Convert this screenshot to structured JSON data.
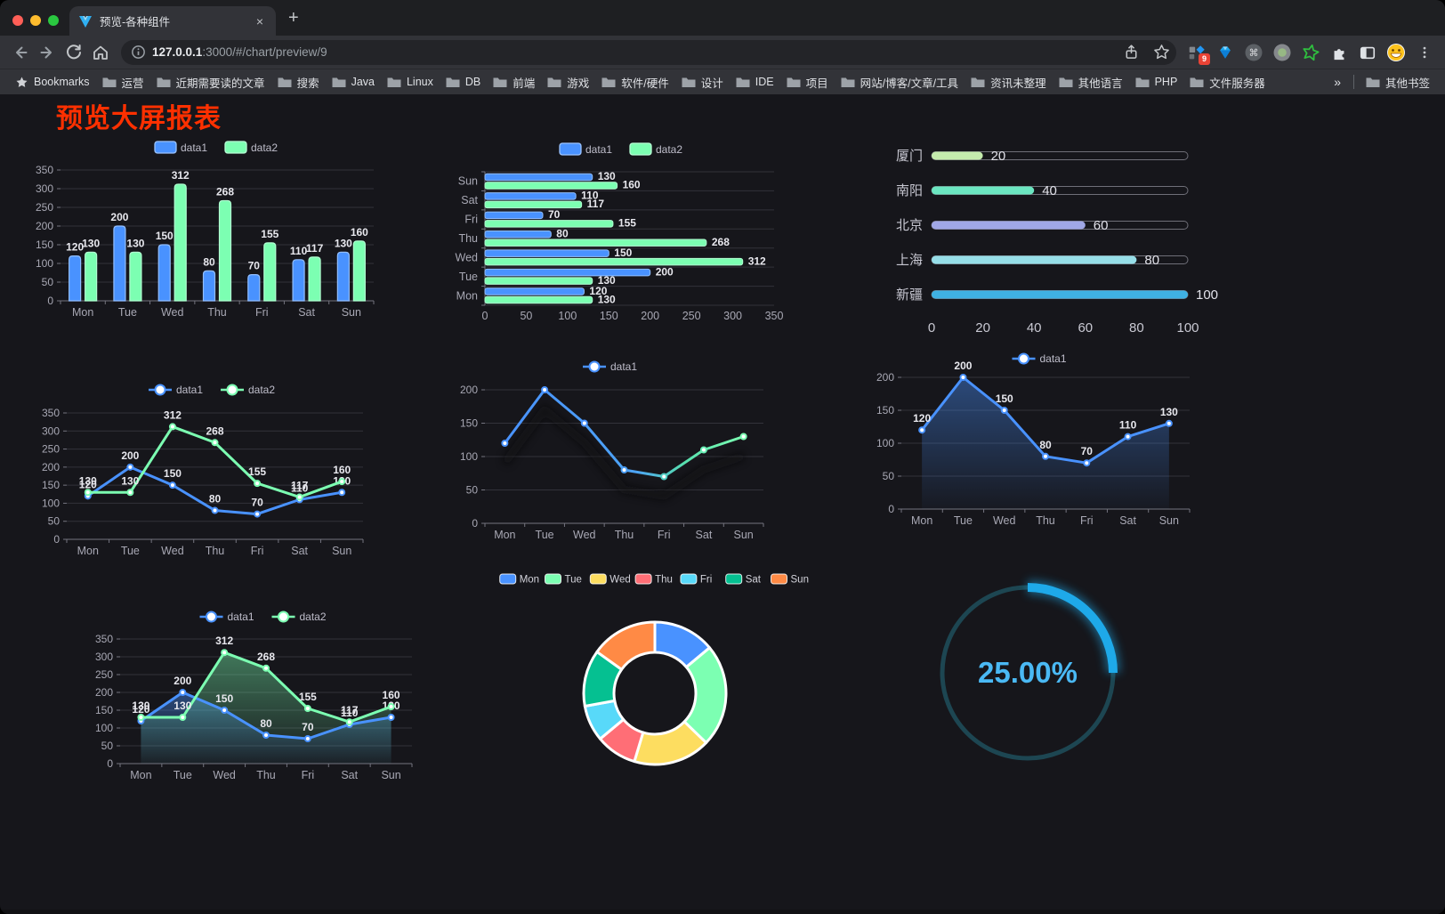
{
  "browser": {
    "tab": {
      "title": "预览-各种组件",
      "close_glyph": "×",
      "new_tab_glyph": "+"
    },
    "urlbar": {
      "host": "127.0.0.1",
      "rest": ":3000/#/chart/preview/9"
    },
    "extensions": {
      "badge": "9"
    },
    "bookmarks": {
      "label": "Bookmarks",
      "folders": [
        "运营",
        "近期需要读的文章",
        "搜索",
        "Java",
        "Linux",
        "DB",
        "前端",
        "游戏",
        "软件/硬件",
        "设计",
        "IDE",
        "项目",
        "网站/博客/文章/工具",
        "资讯未整理",
        "其他语言",
        "PHP",
        "文件服务器"
      ],
      "overflow": "»",
      "other_label": "其他书签"
    }
  },
  "page": {
    "title": "预览大屏报表"
  },
  "chart_data": [
    {
      "type": "bar",
      "categories": [
        "Mon",
        "Tue",
        "Wed",
        "Thu",
        "Fri",
        "Sat",
        "Sun"
      ],
      "series": [
        {
          "name": "data1",
          "color": "#4992ff",
          "values": [
            120,
            200,
            150,
            80,
            70,
            110,
            130
          ]
        },
        {
          "name": "data2",
          "color": "#7cffb2",
          "values": [
            130,
            130,
            312,
            268,
            155,
            117,
            160
          ]
        }
      ],
      "ylim": [
        0,
        350
      ],
      "ystep": 50,
      "legend_position": "top",
      "grid": true
    },
    {
      "type": "bar-horizontal",
      "categories": [
        "Mon",
        "Tue",
        "Wed",
        "Thu",
        "Fri",
        "Sat",
        "Sun"
      ],
      "display_order_top_to_bottom": [
        "Sun",
        "Sat",
        "Fri",
        "Thu",
        "Wed",
        "Tue",
        "Mon"
      ],
      "series": [
        {
          "name": "data1",
          "color": "#4992ff",
          "values": [
            120,
            200,
            150,
            80,
            70,
            110,
            130
          ]
        },
        {
          "name": "data2",
          "color": "#7cffb2",
          "values": [
            130,
            130,
            312,
            268,
            155,
            117,
            160
          ]
        }
      ],
      "xlim": [
        0,
        350
      ],
      "xstep": 50,
      "legend_position": "top"
    },
    {
      "type": "progress",
      "items": [
        {
          "label": "厦门",
          "value": 20,
          "color": "#c4ebad"
        },
        {
          "label": "南阳",
          "value": 40,
          "color": "#6be6c1"
        },
        {
          "label": "北京",
          "value": 60,
          "color": "#a0a7e6"
        },
        {
          "label": "上海",
          "value": 80,
          "color": "#96dee8"
        },
        {
          "label": "新疆",
          "value": 100,
          "color": "#3fb1e3"
        }
      ],
      "xlim": [
        0,
        100
      ],
      "xticks": [
        0,
        20,
        40,
        60,
        80,
        100
      ]
    },
    {
      "type": "line",
      "categories": [
        "Mon",
        "Tue",
        "Wed",
        "Thu",
        "Fri",
        "Sat",
        "Sun"
      ],
      "series": [
        {
          "name": "data1",
          "color": "#4992ff",
          "values": [
            120,
            200,
            150,
            80,
            70,
            110,
            130
          ]
        },
        {
          "name": "data2",
          "color": "#7cffb2",
          "values": [
            130,
            130,
            312,
            268,
            155,
            117,
            160
          ]
        }
      ],
      "ylim": [
        0,
        350
      ],
      "ystep": 50,
      "point_labels": true
    },
    {
      "type": "line-gradient",
      "categories": [
        "Mon",
        "Tue",
        "Wed",
        "Thu",
        "Fri",
        "Sat",
        "Sun"
      ],
      "series": [
        {
          "name": "data1",
          "gradient": [
            "#4992ff",
            "#7cffb2"
          ],
          "values": [
            120,
            200,
            150,
            80,
            70,
            110,
            130
          ]
        }
      ],
      "ylim": [
        0,
        200
      ],
      "ystep": 50,
      "shadow": true
    },
    {
      "type": "area",
      "categories": [
        "Mon",
        "Tue",
        "Wed",
        "Thu",
        "Fri",
        "Sat",
        "Sun"
      ],
      "series": [
        {
          "name": "data1",
          "color": "#4992ff",
          "values": [
            120,
            200,
            150,
            80,
            70,
            110,
            130
          ]
        }
      ],
      "ylim": [
        0,
        200
      ],
      "ystep": 50,
      "point_labels": true
    },
    {
      "type": "area",
      "categories": [
        "Mon",
        "Tue",
        "Wed",
        "Thu",
        "Fri",
        "Sat",
        "Sun"
      ],
      "series": [
        {
          "name": "data1",
          "color": "#4992ff",
          "values": [
            120,
            200,
            150,
            80,
            70,
            110,
            130
          ]
        },
        {
          "name": "data2",
          "color": "#7cffb2",
          "values": [
            130,
            130,
            312,
            268,
            155,
            117,
            160
          ]
        }
      ],
      "ylim": [
        0,
        350
      ],
      "ystep": 50,
      "point_labels": true
    },
    {
      "type": "donut",
      "items": [
        {
          "label": "Mon",
          "value": 120,
          "color": "#4992ff"
        },
        {
          "label": "Tue",
          "value": 200,
          "color": "#7cffb2"
        },
        {
          "label": "Wed",
          "value": 150,
          "color": "#fddd60"
        },
        {
          "label": "Thu",
          "value": 80,
          "color": "#ff6e76"
        },
        {
          "label": "Fri",
          "value": 70,
          "color": "#58d9f9"
        },
        {
          "label": "Sat",
          "value": 110,
          "color": "#05c091"
        },
        {
          "label": "Sun",
          "value": 130,
          "color": "#ff8a45"
        }
      ]
    },
    {
      "type": "gauge",
      "value": 25,
      "display": "25.00%",
      "color": "#1ea9e9",
      "track_color": "#1d4652",
      "text_color": "#4ab9f4"
    }
  ]
}
